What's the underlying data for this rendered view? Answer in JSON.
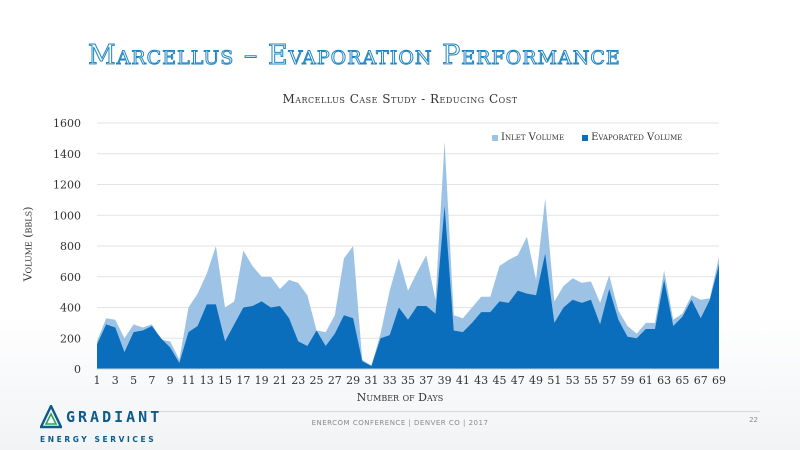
{
  "slide": {
    "title": "Marcellus – Evaporation Performance",
    "footer": "ENERCOM CONFERENCE | DENVER CO | 2017",
    "page_number": "22",
    "logo_name": "GRADIANT",
    "logo_sub": "ENERGY SERVICES"
  },
  "chart_data": {
    "type": "area",
    "title": "Marcellus Case Study - Reducing Cost",
    "xlabel": "Number of Days",
    "ylabel": "Volume (bbls)",
    "ylim": [
      0,
      1600
    ],
    "yticks": [
      0,
      200,
      400,
      600,
      800,
      1000,
      1200,
      1400,
      1600
    ],
    "xticks": [
      1,
      3,
      5,
      7,
      9,
      11,
      13,
      15,
      17,
      19,
      21,
      23,
      25,
      27,
      29,
      31,
      33,
      35,
      37,
      39,
      41,
      43,
      45,
      47,
      49,
      51,
      53,
      55,
      57,
      59,
      61,
      63,
      65,
      67,
      69
    ],
    "grid": true,
    "legend_position": "top-right",
    "x": [
      1,
      2,
      3,
      4,
      5,
      6,
      7,
      8,
      9,
      10,
      11,
      12,
      13,
      14,
      15,
      16,
      17,
      18,
      19,
      20,
      21,
      22,
      23,
      24,
      25,
      26,
      27,
      28,
      29,
      30,
      31,
      32,
      33,
      34,
      35,
      36,
      37,
      38,
      39,
      40,
      41,
      42,
      43,
      44,
      45,
      46,
      47,
      48,
      49,
      50,
      51,
      52,
      53,
      54,
      55,
      56,
      57,
      58,
      59,
      60,
      61,
      62,
      63,
      64,
      65,
      66,
      67,
      68,
      69
    ],
    "series": [
      {
        "name": "Inlet Volume",
        "color": "#9cc3e5",
        "values": [
          180,
          330,
          320,
          200,
          290,
          270,
          290,
          190,
          180,
          60,
          400,
          490,
          620,
          800,
          400,
          440,
          770,
          670,
          600,
          600,
          520,
          580,
          560,
          480,
          250,
          240,
          350,
          720,
          800,
          60,
          20,
          230,
          510,
          720,
          510,
          630,
          740,
          450,
          1480,
          350,
          330,
          400,
          470,
          470,
          670,
          710,
          740,
          860,
          580,
          1110,
          440,
          540,
          590,
          560,
          570,
          430,
          610,
          380,
          280,
          230,
          300,
          300,
          640,
          320,
          360,
          480,
          450,
          460,
          730
        ]
      },
      {
        "name": "Evaporated Volume",
        "color": "#0a6ebd",
        "values": [
          160,
          290,
          270,
          110,
          240,
          250,
          280,
          200,
          140,
          40,
          240,
          280,
          420,
          420,
          180,
          290,
          400,
          410,
          440,
          400,
          410,
          330,
          180,
          150,
          250,
          150,
          230,
          350,
          330,
          50,
          20,
          200,
          220,
          400,
          320,
          410,
          410,
          360,
          1060,
          250,
          240,
          300,
          370,
          370,
          440,
          430,
          510,
          490,
          480,
          750,
          300,
          400,
          450,
          430,
          450,
          290,
          520,
          320,
          210,
          200,
          260,
          260,
          580,
          280,
          340,
          450,
          330,
          450,
          680
        ]
      }
    ]
  }
}
